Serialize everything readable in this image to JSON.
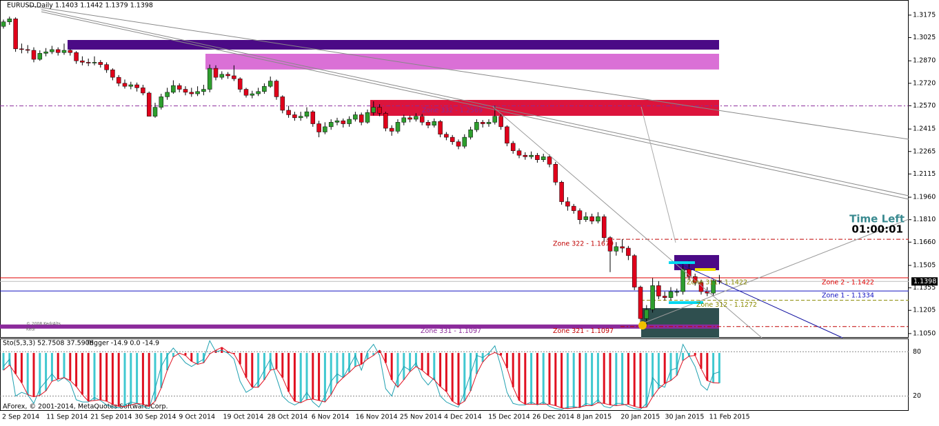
{
  "header": "EURUSD,Daily  1.1403 1.1442 1.1379 1.1398",
  "timer": {
    "title": "Time Left",
    "value": "01:00:01"
  },
  "watermark": [
    "© 2008 KedrAlts",
    "Kedr"
  ],
  "footer": "AForex, © 2001-2014, MetaQuotes Software Corp.",
  "chart_data": [
    {
      "type": "candlestick",
      "up_color": "#2e9e2e",
      "down_color": "#e0001b",
      "ylim": [
        1.1022,
        1.3262
      ],
      "yticks": [
        1.3175,
        1.3025,
        {
          "value": 1.287,
          "label": "1.2870"
        },
        {
          "value": 1.272,
          "label": "1.2720"
        },
        {
          "value": 1.257,
          "label": "1.2570"
        },
        1.2415,
        1.2265,
        1.2115,
        {
          "value": 1.196,
          "label": "1.1960"
        },
        {
          "value": 1.181,
          "label": "1.1810"
        },
        {
          "value": 1.166,
          "label": "1.1660"
        },
        1.1505,
        1.1355,
        1.1205,
        {
          "value": 1.105,
          "label": "1.1050"
        }
      ],
      "current_price": 1.1398,
      "xtick_labels": [
        "2 Sep 2014",
        "11 Sep 2014",
        "21 Sep 2014",
        "30 Sep 2014",
        "9 Oct 2014",
        "19 Oct 2014",
        "28 Oct 2014",
        "6 Nov 2014",
        "16 Nov 2014",
        "25 Nov 2014",
        "4 Dec 2014",
        "15 Dec 2014",
        "26 Dec 2014",
        "8 Jan 2015",
        "20 Jan 2015",
        "30 Jan 2015",
        "11 Feb 2015"
      ],
      "candles": [
        [
          1.31,
          1.3145,
          1.3085,
          1.313
        ],
        [
          1.313,
          1.3165,
          1.311,
          1.315
        ],
        [
          1.315,
          1.316,
          1.293,
          1.295
        ],
        [
          1.295,
          1.2985,
          1.292,
          1.2945
        ],
        [
          1.2945,
          1.2975,
          1.292,
          1.294
        ],
        [
          1.294,
          1.296,
          1.286,
          1.288
        ],
        [
          1.288,
          1.294,
          1.287,
          1.292
        ],
        [
          1.292,
          1.2955,
          1.29,
          1.293
        ],
        [
          1.293,
          1.297,
          1.2915,
          1.2945
        ],
        [
          1.2945,
          1.296,
          1.2905,
          1.2925
        ],
        [
          1.2925,
          1.2985,
          1.291,
          1.294
        ],
        [
          1.294,
          1.295,
          1.2905,
          1.2925
        ],
        [
          1.2925,
          1.2935,
          1.285,
          1.287
        ],
        [
          1.287,
          1.29,
          1.284,
          1.286
        ],
        [
          1.286,
          1.2885,
          1.2835,
          1.2855
        ],
        [
          1.2855,
          1.29,
          1.284,
          1.286
        ],
        [
          1.286,
          1.2875,
          1.2825,
          1.2845
        ],
        [
          1.2845,
          1.286,
          1.279,
          1.281
        ],
        [
          1.281,
          1.282,
          1.274,
          1.276
        ],
        [
          1.276,
          1.2775,
          1.27,
          1.272
        ],
        [
          1.272,
          1.2745,
          1.2685,
          1.27
        ],
        [
          1.27,
          1.273,
          1.268,
          1.271
        ],
        [
          1.271,
          1.2725,
          1.2665,
          1.269
        ],
        [
          1.269,
          1.271,
          1.264,
          1.2655
        ],
        [
          1.2655,
          1.2665,
          1.25,
          1.25
        ],
        [
          1.25,
          1.259,
          1.249,
          1.256
        ],
        [
          1.256,
          1.265,
          1.2545,
          1.263
        ],
        [
          1.263,
          1.269,
          1.261,
          1.266
        ],
        [
          1.266,
          1.274,
          1.265,
          1.2705
        ],
        [
          1.2705,
          1.272,
          1.266,
          1.268
        ],
        [
          1.268,
          1.27,
          1.264,
          1.266
        ],
        [
          1.266,
          1.269,
          1.263,
          1.265
        ],
        [
          1.265,
          1.27,
          1.2635,
          1.2665
        ],
        [
          1.2665,
          1.271,
          1.264,
          1.268
        ],
        [
          1.268,
          1.2845,
          1.266,
          1.282
        ],
        [
          1.282,
          1.284,
          1.274,
          1.276
        ],
        [
          1.276,
          1.28,
          1.2745,
          1.278
        ],
        [
          1.278,
          1.2795,
          1.275,
          1.277
        ],
        [
          1.277,
          1.284,
          1.2735,
          1.275
        ],
        [
          1.275,
          1.276,
          1.266,
          1.268
        ],
        [
          1.268,
          1.269,
          1.2625,
          1.264
        ],
        [
          1.264,
          1.267,
          1.262,
          1.265
        ],
        [
          1.265,
          1.269,
          1.2635,
          1.2665
        ],
        [
          1.2665,
          1.272,
          1.265,
          1.27
        ],
        [
          1.27,
          1.2765,
          1.269,
          1.2735
        ],
        [
          1.2735,
          1.2745,
          1.261,
          1.263
        ],
        [
          1.263,
          1.264,
          1.252,
          1.254
        ],
        [
          1.254,
          1.257,
          1.249,
          1.251
        ],
        [
          1.251,
          1.253,
          1.247,
          1.249
        ],
        [
          1.249,
          1.253,
          1.247,
          1.25
        ],
        [
          1.25,
          1.256,
          1.2485,
          1.253
        ],
        [
          1.253,
          1.254,
          1.243,
          1.245
        ],
        [
          1.245,
          1.247,
          1.236,
          1.2395
        ],
        [
          1.2395,
          1.246,
          1.238,
          1.243
        ],
        [
          1.243,
          1.248,
          1.241,
          1.246
        ],
        [
          1.246,
          1.249,
          1.244,
          1.247
        ],
        [
          1.247,
          1.2485,
          1.2425,
          1.245
        ],
        [
          1.245,
          1.25,
          1.243,
          1.248
        ],
        [
          1.248,
          1.253,
          1.2465,
          1.251
        ],
        [
          1.251,
          1.2525,
          1.244,
          1.246
        ],
        [
          1.246,
          1.2545,
          1.245,
          1.2525
        ],
        [
          1.2525,
          1.26,
          1.2505,
          1.256
        ],
        [
          1.256,
          1.258,
          1.25,
          1.252
        ],
        [
          1.252,
          1.253,
          1.24,
          1.242
        ],
        [
          1.242,
          1.244,
          1.237,
          1.24
        ],
        [
          1.24,
          1.248,
          1.2385,
          1.246
        ],
        [
          1.246,
          1.251,
          1.244,
          1.249
        ],
        [
          1.249,
          1.2505,
          1.246,
          1.248
        ],
        [
          1.248,
          1.252,
          1.2465,
          1.25
        ],
        [
          1.25,
          1.2515,
          1.244,
          1.246
        ],
        [
          1.246,
          1.2475,
          1.242,
          1.244
        ],
        [
          1.244,
          1.2485,
          1.2425,
          1.2465
        ],
        [
          1.2465,
          1.2475,
          1.236,
          1.238
        ],
        [
          1.238,
          1.2395,
          1.234,
          1.236
        ],
        [
          1.236,
          1.2375,
          1.231,
          1.233
        ],
        [
          1.233,
          1.2345,
          1.228,
          1.23
        ],
        [
          1.23,
          1.238,
          1.2285,
          1.236
        ],
        [
          1.236,
          1.243,
          1.2345,
          1.241
        ],
        [
          1.241,
          1.248,
          1.2395,
          1.246
        ],
        [
          1.246,
          1.2475,
          1.2425,
          1.245
        ],
        [
          1.245,
          1.248,
          1.243,
          1.246
        ],
        [
          1.246,
          1.257,
          1.2445,
          1.25
        ],
        [
          1.25,
          1.2515,
          1.241,
          1.243
        ],
        [
          1.243,
          1.244,
          1.23,
          1.232
        ],
        [
          1.232,
          1.2335,
          1.225,
          1.227
        ],
        [
          1.227,
          1.2285,
          1.222,
          1.224
        ],
        [
          1.224,
          1.226,
          1.221,
          1.223
        ],
        [
          1.223,
          1.2265,
          1.2215,
          1.224
        ],
        [
          1.224,
          1.2255,
          1.219,
          1.221
        ],
        [
          1.221,
          1.225,
          1.2195,
          1.223
        ],
        [
          1.223,
          1.2245,
          1.216,
          1.218
        ],
        [
          1.218,
          1.2195,
          1.204,
          1.206
        ],
        [
          1.206,
          1.207,
          1.191,
          1.193
        ],
        [
          1.193,
          1.196,
          1.187,
          1.19
        ],
        [
          1.19,
          1.1915,
          1.185,
          1.187
        ],
        [
          1.187,
          1.1885,
          1.178,
          1.181
        ],
        [
          1.181,
          1.186,
          1.1795,
          1.183
        ],
        [
          1.183,
          1.185,
          1.178,
          1.18
        ],
        [
          1.18,
          1.186,
          1.1785,
          1.183
        ],
        [
          1.183,
          1.1845,
          1.166,
          1.169
        ],
        [
          1.169,
          1.17,
          1.146,
          1.16
        ],
        [
          1.16,
          1.166,
          1.157,
          1.163
        ],
        [
          1.163,
          1.168,
          1.159,
          1.162
        ],
        [
          1.162,
          1.1635,
          1.154,
          1.157
        ],
        [
          1.157,
          1.158,
          1.134,
          1.136
        ],
        [
          1.136,
          1.137,
          1.11,
          1.115
        ],
        [
          1.115,
          1.124,
          1.11,
          1.121
        ],
        [
          1.121,
          1.142,
          1.119,
          1.137
        ],
        [
          1.137,
          1.14,
          1.128,
          1.13
        ],
        [
          1.13,
          1.133,
          1.127,
          1.129
        ],
        [
          1.129,
          1.136,
          1.127,
          1.133
        ],
        [
          1.133,
          1.135,
          1.13,
          1.133
        ],
        [
          1.133,
          1.153,
          1.131,
          1.148
        ],
        [
          1.148,
          1.1535,
          1.141,
          1.143
        ],
        [
          1.143,
          1.145,
          1.137,
          1.139
        ],
        [
          1.139,
          1.141,
          1.131,
          1.133
        ],
        [
          1.133,
          1.136,
          1.13,
          1.132
        ],
        [
          1.132,
          1.141,
          1.1305,
          1.1403
        ],
        [
          1.1403,
          1.1442,
          1.1379,
          1.1398
        ]
      ],
      "boxes": [
        {
          "top": 1.3009,
          "bottom": 1.2945,
          "color": "#4b0a86"
        },
        {
          "top": 1.2917,
          "bottom": 1.2812,
          "color": "#da70d6"
        },
        {
          "top": 1.2609,
          "bottom": 1.2503,
          "color": "#dc143c"
        },
        {
          "top": 1.1574,
          "bottom": 1.1473,
          "color": "#4b0a86"
        },
        {
          "top": 1.122,
          "bottom": 1.1022,
          "color": "#2f4f4f"
        }
      ],
      "zones": [
        {
          "label": "Zone 332 - 1.2569",
          "price": 1.2569,
          "color": "#8b2a9b"
        },
        {
          "label": "Zone 322 - 1.1679",
          "price": 1.1679,
          "color": "#c00000"
        },
        {
          "label": "Zone 331 - 1.1097",
          "price": 1.1097,
          "color": "#8b2a9b"
        },
        {
          "label": "Zone 321 - 1.1097",
          "price": 1.1097,
          "color": "#c00000"
        },
        {
          "label": "Zone 2 - 1.1422",
          "price": 1.1422,
          "color": "#e00000"
        },
        {
          "label": "Zone 1 - 1.1334",
          "price": 1.1334,
          "color": "#1010c0"
        },
        {
          "label": "Zone 311 - 1.1422",
          "price": 1.1422,
          "color": "#8a8a00"
        },
        {
          "label": "Zone 312 - 1.1272",
          "price": 1.1272,
          "color": "#8a8a00"
        }
      ]
    },
    {
      "type": "stochastic",
      "title": "Sto(5,3,3) 52.7508 37.5908",
      "trigger": "Trigger -14.9 0.0 -14.9",
      "ylim": [
        0,
        98
      ],
      "yticks": [
        80,
        20
      ],
      "up_color": "#40c8d0",
      "down_color": "#e01020",
      "series": [
        {
          "color": "#1fa0b0",
          "values": [
            60,
            70,
            20,
            25,
            22,
            10,
            30,
            40,
            50,
            40,
            45,
            38,
            15,
            12,
            12,
            18,
            14,
            8,
            5,
            4,
            8,
            12,
            10,
            6,
            3,
            30,
            60,
            75,
            85,
            75,
            65,
            60,
            65,
            70,
            95,
            80,
            82,
            78,
            70,
            40,
            25,
            30,
            40,
            55,
            70,
            45,
            20,
            12,
            8,
            12,
            25,
            12,
            5,
            20,
            40,
            50,
            45,
            60,
            75,
            55,
            80,
            90,
            75,
            30,
            20,
            45,
            60,
            55,
            65,
            45,
            35,
            45,
            20,
            12,
            8,
            5,
            25,
            50,
            75,
            72,
            78,
            88,
            60,
            25,
            10,
            8,
            8,
            12,
            8,
            12,
            6,
            3,
            2,
            5,
            6,
            4,
            10,
            8,
            15,
            6,
            4,
            10,
            10,
            6,
            3,
            2,
            10,
            45,
            35,
            32,
            55,
            58,
            90,
            75,
            60,
            35,
            28,
            50,
            52.7508
          ]
        },
        {
          "color": "#e01020",
          "values": [
            55,
            62,
            50,
            38,
            22,
            19,
            21,
            27,
            40,
            43,
            45,
            41,
            33,
            22,
            13,
            14,
            15,
            13,
            9,
            6,
            6,
            8,
            10,
            9,
            6,
            13,
            31,
            55,
            73,
            78,
            75,
            67,
            63,
            65,
            77,
            82,
            86,
            80,
            77,
            63,
            45,
            32,
            32,
            42,
            55,
            57,
            45,
            26,
            13,
            11,
            15,
            16,
            14,
            12,
            22,
            37,
            45,
            52,
            60,
            63,
            70,
            75,
            82,
            65,
            42,
            32,
            42,
            53,
            60,
            55,
            48,
            42,
            33,
            26,
            13,
            8,
            13,
            27,
            50,
            66,
            75,
            79,
            75,
            58,
            32,
            14,
            9,
            9,
            9,
            9,
            9,
            7,
            4,
            3,
            4,
            5,
            7,
            7,
            11,
            10,
            8,
            7,
            8,
            9,
            6,
            4,
            5,
            19,
            30,
            37,
            41,
            48,
            68,
            74,
            75,
            57,
            41,
            38,
            37.5908
          ]
        }
      ]
    }
  ]
}
